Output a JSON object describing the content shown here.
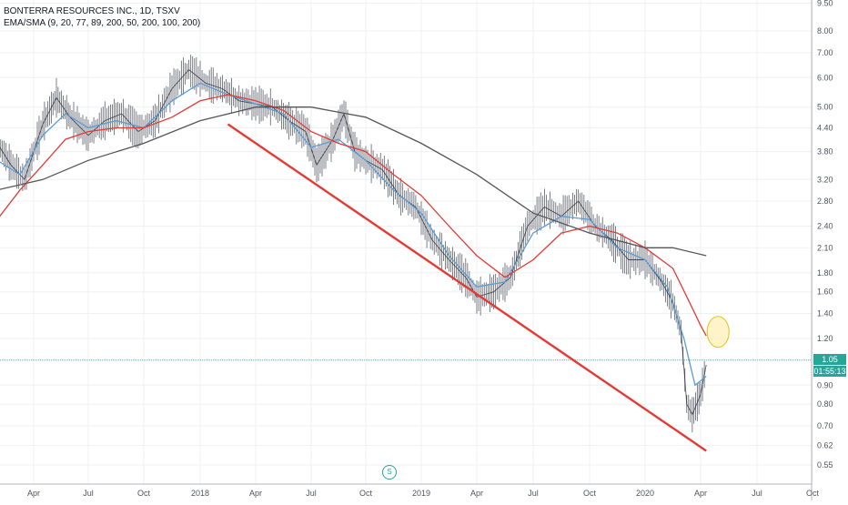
{
  "header": {
    "symbol_line": "BONTERRA RESOURCES INC., 1D, TSXV",
    "indicator_line": "EMA/SMA (9, 20, 77, 89, 200, 50, 200, 100, 200)"
  },
  "price_badges": {
    "last_price": "1.05",
    "countdown": "01:55:13"
  },
  "event_marker": {
    "label": "S"
  },
  "chart_data": {
    "type": "line",
    "scale": "log",
    "title": "BONTERRA RESOURCES INC., 1D, TSXV",
    "grid": true,
    "y_ticks": [
      9.5,
      8.0,
      7.0,
      6.0,
      5.0,
      4.4,
      3.8,
      3.2,
      2.8,
      2.4,
      2.1,
      1.8,
      1.6,
      1.4,
      1.2,
      0.9,
      0.8,
      0.7,
      0.62,
      0.55
    ],
    "y_tick_labels": [
      "9.50",
      "8.00",
      "7.00",
      "6.00",
      "5.00",
      "4.40",
      "3.80",
      "3.20",
      "2.80",
      "2.40",
      "2.10",
      "1.80",
      "1.60",
      "1.40",
      "1.20",
      "0.90",
      "0.80",
      "0.70",
      "0.62",
      "0.55"
    ],
    "x_tick_labels": [
      "Apr",
      "Jul",
      "Oct",
      "2018",
      "Apr",
      "Jul",
      "Oct",
      "2019",
      "Apr",
      "Jul",
      "Oct",
      "2020",
      "Apr",
      "Jul",
      "Oct"
    ],
    "x_tick_index": [
      0.8,
      2.0,
      3.0,
      4.0,
      5.0,
      6.0,
      7.0,
      8.0,
      9.0,
      10.0,
      11.0,
      12.0,
      13.0,
      14.0,
      15.0
    ],
    "last_price": 1.05,
    "series": [
      {
        "color": "#131722",
        "values": [
          [
            0,
            4.0
          ],
          [
            0.3,
            3.5
          ],
          [
            0.6,
            3.2
          ],
          [
            1.0,
            4.5
          ],
          [
            1.3,
            5.3
          ],
          [
            1.6,
            4.7
          ],
          [
            2.0,
            4.2
          ],
          [
            2.3,
            4.6
          ],
          [
            2.6,
            4.8
          ],
          [
            2.9,
            4.3
          ],
          [
            3.2,
            4.6
          ],
          [
            3.5,
            5.6
          ],
          [
            3.8,
            6.3
          ],
          [
            4.1,
            5.8
          ],
          [
            4.4,
            5.6
          ],
          [
            4.7,
            5.2
          ],
          [
            5.0,
            5.1
          ],
          [
            5.3,
            5.0
          ],
          [
            5.6,
            4.6
          ],
          [
            5.9,
            4.3
          ],
          [
            6.1,
            3.5
          ],
          [
            6.4,
            4.1
          ],
          [
            6.6,
            4.8
          ],
          [
            6.8,
            3.8
          ],
          [
            7.0,
            3.6
          ],
          [
            7.3,
            3.4
          ],
          [
            7.6,
            2.9
          ],
          [
            7.9,
            2.7
          ],
          [
            8.2,
            2.2
          ],
          [
            8.5,
            1.95
          ],
          [
            8.8,
            1.75
          ],
          [
            9.0,
            1.55
          ],
          [
            9.3,
            1.6
          ],
          [
            9.6,
            1.75
          ],
          [
            9.9,
            2.4
          ],
          [
            10.2,
            2.7
          ],
          [
            10.5,
            2.55
          ],
          [
            10.8,
            2.8
          ],
          [
            11.1,
            2.4
          ],
          [
            11.4,
            2.2
          ],
          [
            11.7,
            1.95
          ],
          [
            12.0,
            1.95
          ],
          [
            12.3,
            1.7
          ],
          [
            12.5,
            1.5
          ],
          [
            12.65,
            1.25
          ],
          [
            12.75,
            0.8
          ],
          [
            12.85,
            0.75
          ],
          [
            13.0,
            0.85
          ],
          [
            13.1,
            1.02
          ]
        ]
      },
      {
        "color": "#5b9bd5",
        "values": [
          [
            0,
            3.6
          ],
          [
            0.5,
            3.3
          ],
          [
            1.0,
            4.2
          ],
          [
            1.5,
            4.8
          ],
          [
            2.0,
            4.4
          ],
          [
            2.5,
            4.6
          ],
          [
            3.0,
            4.4
          ],
          [
            3.5,
            5.2
          ],
          [
            4.0,
            5.8
          ],
          [
            4.5,
            5.4
          ],
          [
            5.0,
            5.1
          ],
          [
            5.5,
            4.8
          ],
          [
            6.0,
            3.9
          ],
          [
            6.5,
            4.1
          ],
          [
            7.0,
            3.6
          ],
          [
            7.5,
            3.0
          ],
          [
            8.0,
            2.6
          ],
          [
            8.5,
            2.0
          ],
          [
            9.0,
            1.65
          ],
          [
            9.5,
            1.7
          ],
          [
            10.0,
            2.3
          ],
          [
            10.5,
            2.55
          ],
          [
            11.0,
            2.5
          ],
          [
            11.5,
            2.1
          ],
          [
            12.0,
            1.95
          ],
          [
            12.4,
            1.65
          ],
          [
            12.7,
            1.2
          ],
          [
            12.9,
            0.9
          ],
          [
            13.1,
            0.95
          ]
        ]
      },
      {
        "color": "#e53935",
        "values": [
          [
            0,
            2.5
          ],
          [
            0.5,
            3.0
          ],
          [
            1.0,
            3.5
          ],
          [
            1.5,
            4.1
          ],
          [
            2.0,
            4.3
          ],
          [
            2.5,
            4.4
          ],
          [
            3.0,
            4.4
          ],
          [
            3.5,
            4.7
          ],
          [
            4.0,
            5.2
          ],
          [
            4.5,
            5.4
          ],
          [
            5.0,
            5.2
          ],
          [
            5.5,
            4.9
          ],
          [
            6.0,
            4.3
          ],
          [
            6.5,
            4.0
          ],
          [
            7.0,
            3.8
          ],
          [
            7.5,
            3.3
          ],
          [
            8.0,
            2.9
          ],
          [
            8.5,
            2.4
          ],
          [
            9.0,
            2.0
          ],
          [
            9.5,
            1.75
          ],
          [
            10.0,
            1.95
          ],
          [
            10.5,
            2.3
          ],
          [
            11.0,
            2.4
          ],
          [
            11.5,
            2.3
          ],
          [
            12.0,
            2.1
          ],
          [
            12.5,
            1.85
          ],
          [
            12.8,
            1.5
          ],
          [
            13.0,
            1.3
          ],
          [
            13.1,
            1.22
          ]
        ]
      },
      {
        "color": "#555555",
        "values": [
          [
            0,
            3.0
          ],
          [
            1.0,
            3.2
          ],
          [
            2.0,
            3.6
          ],
          [
            3.0,
            4.0
          ],
          [
            4.0,
            4.6
          ],
          [
            5.0,
            5.0
          ],
          [
            6.0,
            5.0
          ],
          [
            7.0,
            4.7
          ],
          [
            8.0,
            4.0
          ],
          [
            9.0,
            3.3
          ],
          [
            10.0,
            2.6
          ],
          [
            11.0,
            2.3
          ],
          [
            12.0,
            2.1
          ],
          [
            12.5,
            2.1
          ],
          [
            13.1,
            2.0
          ]
        ]
      }
    ],
    "trendline": {
      "color": "#e53935",
      "from": [
        4.5,
        4.5
      ],
      "to": [
        13.1,
        0.6
      ]
    },
    "highlight_ellipse": {
      "color": "#ffe082",
      "center": [
        13.1,
        1.25
      ]
    }
  }
}
